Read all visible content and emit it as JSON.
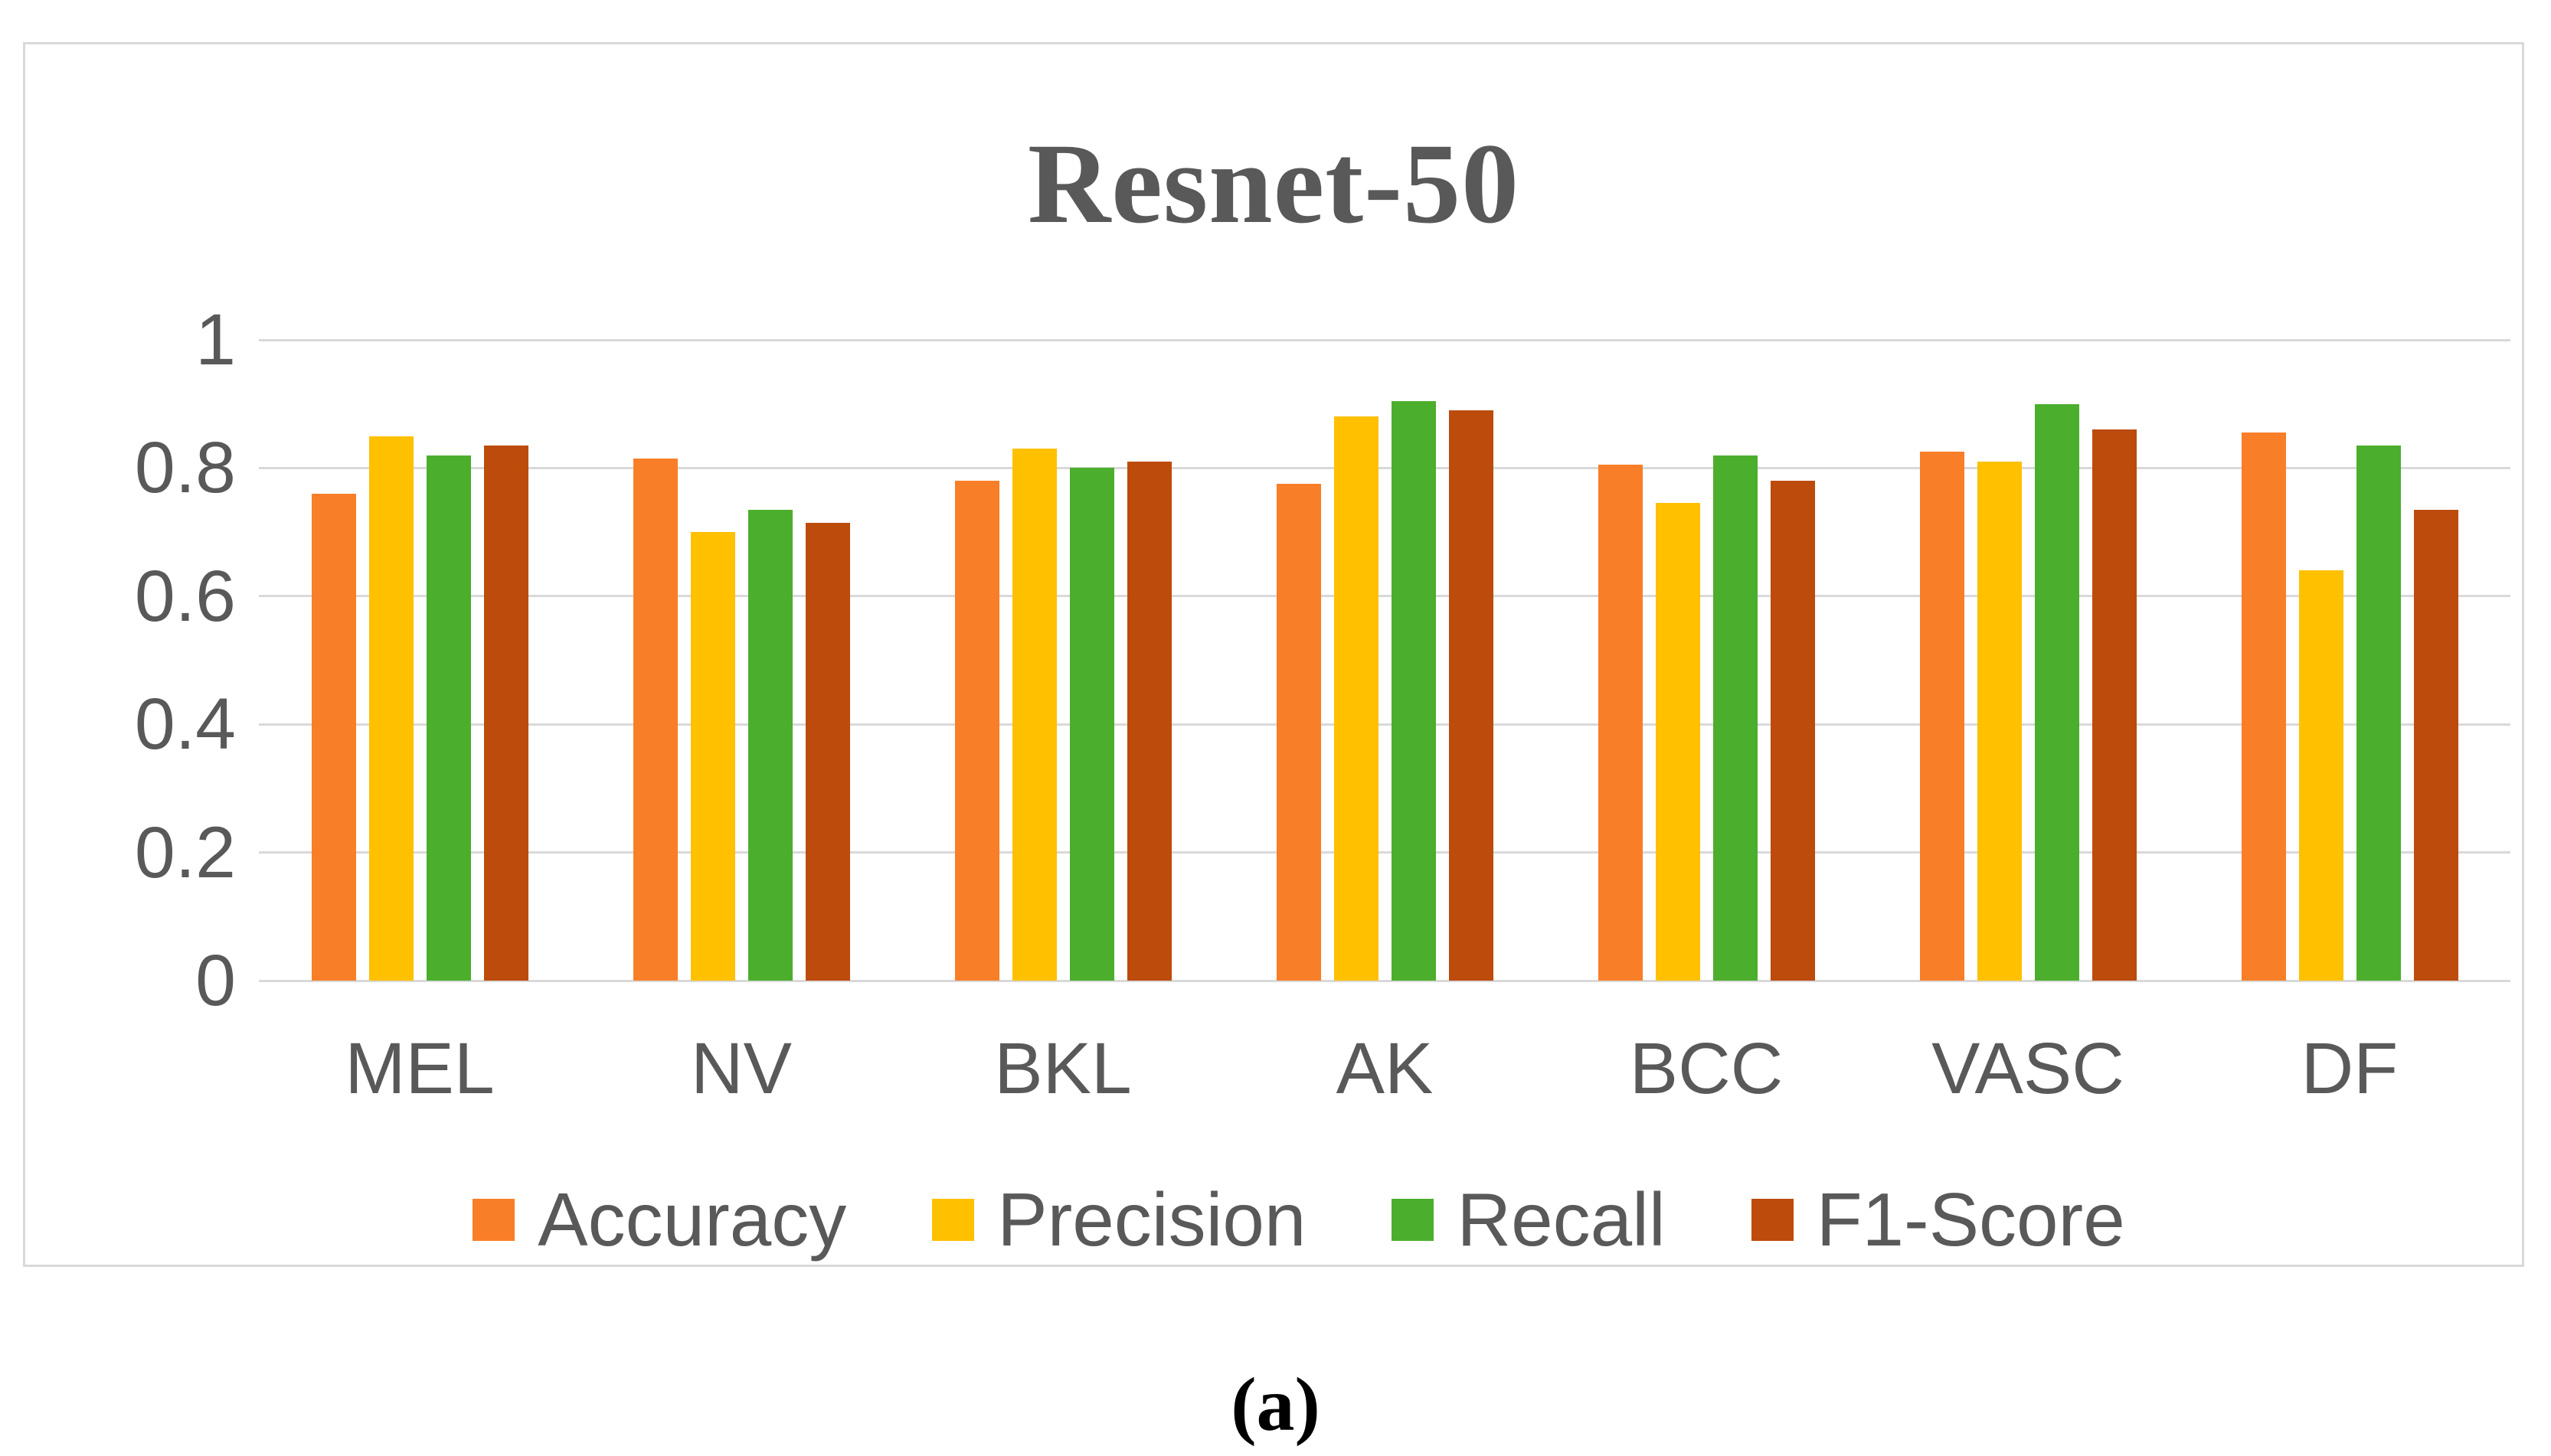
{
  "chart_data": {
    "type": "bar",
    "title": "Resnet-50",
    "caption": "(a)",
    "categories": [
      "MEL",
      "NV",
      "BKL",
      "AK",
      "BCC",
      "VASC",
      "DF"
    ],
    "series": [
      {
        "name": "Accuracy",
        "color": "#F87E28",
        "values": [
          0.76,
          0.815,
          0.78,
          0.775,
          0.805,
          0.825,
          0.855
        ]
      },
      {
        "name": "Precision",
        "color": "#FFC000",
        "values": [
          0.85,
          0.7,
          0.83,
          0.88,
          0.745,
          0.81,
          0.64
        ]
      },
      {
        "name": "Recall",
        "color": "#4BAE2C",
        "values": [
          0.82,
          0.735,
          0.8,
          0.905,
          0.82,
          0.9,
          0.835
        ]
      },
      {
        "name": "F1-Score",
        "color": "#BC4B0C",
        "values": [
          0.835,
          0.715,
          0.81,
          0.89,
          0.78,
          0.86,
          0.735
        ]
      }
    ],
    "xlabel": "",
    "ylabel": "",
    "ylim": [
      0,
      1
    ],
    "yticks": [
      "1",
      "0.8",
      "0.6",
      "0.4",
      "0.2",
      "0"
    ],
    "grid": true,
    "legend_position": "bottom",
    "colors": {
      "title_text": "#595959",
      "axis_text": "#595959",
      "gridline": "#D9D9D9",
      "chart_border": "#D9D9D9",
      "caption_text": "#000000",
      "background": "#FFFFFF"
    }
  }
}
